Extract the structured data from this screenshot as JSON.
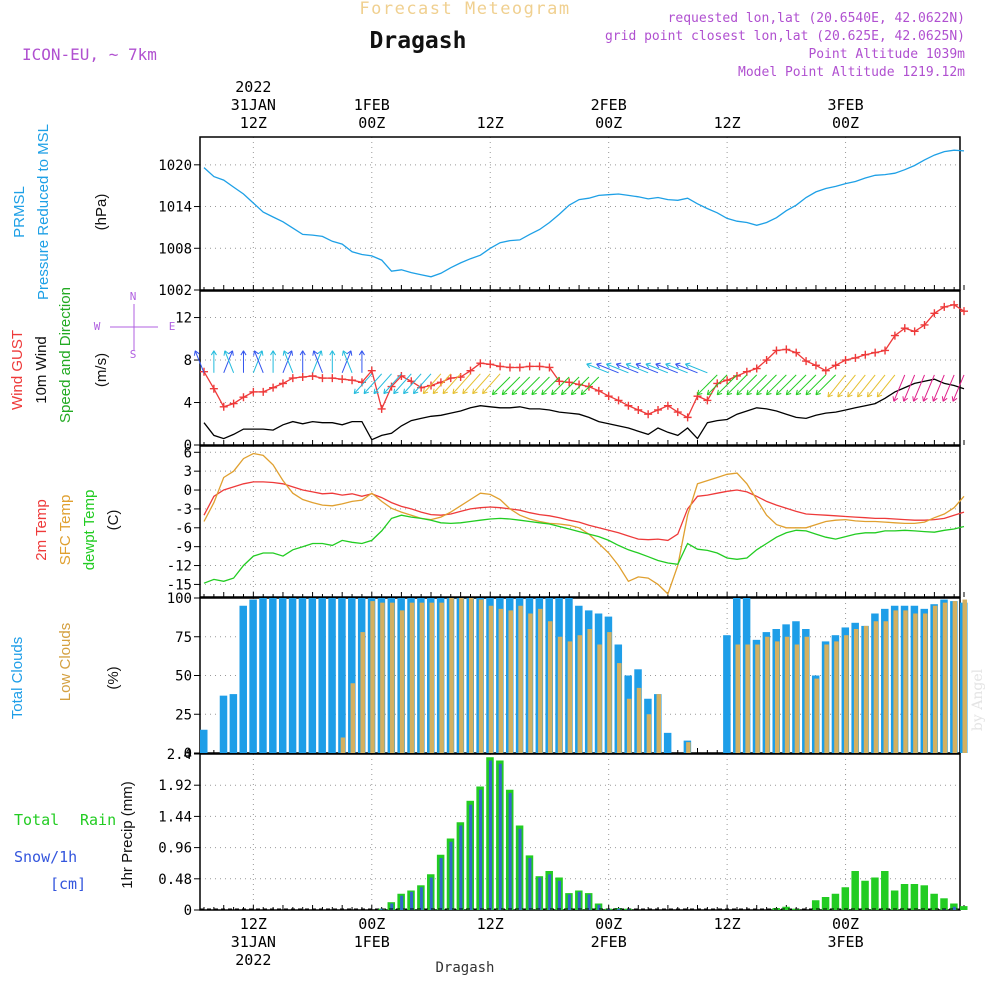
{
  "header": {
    "super_title": "Forecast Meteogram",
    "location": "Dragash",
    "model": "ICON-EU, ~ 7km",
    "requested": "requested lon,lat (20.6540E, 42.0622N)",
    "grid_point": "grid point closest lon,lat (20.625E, 42.0625N)",
    "point_alt": "Point Altitude 1039m",
    "model_alt": "Model Point Altitude 1219.12m",
    "watermark": "by Angel",
    "footer_location": "Dragash"
  },
  "time_axis": {
    "start_hour": 0,
    "end_hour": 77,
    "ticks": [
      {
        "h": 5,
        "l1": "12Z",
        "l2": "31JAN",
        "l3": "2022"
      },
      {
        "h": 17,
        "l1": "00Z",
        "l2": "1FEB",
        "l3": ""
      },
      {
        "h": 29,
        "l1": "12Z",
        "l2": "",
        "l3": ""
      },
      {
        "h": 41,
        "l1": "00Z",
        "l2": "2FEB",
        "l3": ""
      },
      {
        "h": 53,
        "l1": "12Z",
        "l2": "",
        "l3": ""
      },
      {
        "h": 65,
        "l1": "00Z",
        "l2": "3FEB",
        "l3": ""
      }
    ]
  },
  "panels": {
    "pressure": {
      "label1": "PRMSL",
      "label2": "Pressure Reduced to MSL",
      "unit": "(hPa)",
      "yticks": [
        "1002",
        "1008",
        "1014",
        "1020"
      ],
      "ylim": [
        1002,
        1024
      ],
      "line_color": "#1ea0e6"
    },
    "wind": {
      "label_gust": "Wind GUST",
      "label_wind": "10m Wind",
      "label_dir": "Speed and Direction",
      "unit": "(m/s)",
      "compass_n": "N",
      "compass_s": "S",
      "compass_w": "W",
      "compass_e": "E",
      "yticks": [
        "0",
        "4",
        "8",
        "12"
      ],
      "ylim": [
        0,
        14.5
      ]
    },
    "temp": {
      "label_2m": "2m Temp",
      "label_sfc": "SFC Temp",
      "label_dewpt": "dewpt Temp",
      "unit": "(C)",
      "yticks": [
        "-15",
        "-12",
        "-9",
        "-6",
        "-3",
        "0",
        "3",
        "6"
      ],
      "ylim": [
        -17,
        7
      ]
    },
    "clouds": {
      "label_total": "Total Clouds",
      "label_low": "Low Clouds",
      "unit": "(%)",
      "yticks": [
        "0",
        "25",
        "50",
        "75",
        "100"
      ],
      "ylim": [
        0,
        100
      ]
    },
    "precip": {
      "label_total": "Total",
      "label_rain": "Rain",
      "label_snow": "Snow/1h",
      "label_cm": "[cm]",
      "unit": "1hr Precip (mm)",
      "yticks": [
        "0",
        "0.48",
        "0.96",
        "1.44",
        "1.92",
        "2.4"
      ],
      "ylim": [
        0,
        2.4
      ]
    }
  },
  "colors": {
    "pressure": "#1ea0e6",
    "gust": "#ee3a3a",
    "wind": "#000000",
    "t2m": "#ee3a3a",
    "tsfc": "#e0a030",
    "dewpt": "#22cc22",
    "total_clouds": "#1e9ee8",
    "low_clouds": "#d4b060",
    "rain": "#22cc22",
    "snow": "#3366cc",
    "compass": "#b060e0"
  },
  "chart_data": {
    "type": "meteogram",
    "hours_from_start": "0..77",
    "pressure_hPa": [
      1019.6,
      1018.3,
      1017.8,
      1016.8,
      1015.8,
      1014.5,
      1013.2,
      1012.5,
      1011.8,
      1010.9,
      1010.0,
      1009.9,
      1009.7,
      1009.0,
      1008.6,
      1007.5,
      1007.1,
      1006.9,
      1006.3,
      1004.7,
      1004.9,
      1004.5,
      1004.2,
      1003.9,
      1004.4,
      1005.2,
      1005.9,
      1006.5,
      1007.0,
      1008.0,
      1008.8,
      1009.1,
      1009.2,
      1010.0,
      1010.7,
      1011.7,
      1012.9,
      1014.2,
      1015.0,
      1015.2,
      1015.6,
      1015.7,
      1015.8,
      1015.6,
      1015.4,
      1015.1,
      1015.3,
      1015.0,
      1014.9,
      1015.2,
      1014.4,
      1013.7,
      1013.1,
      1012.3,
      1011.9,
      1011.7,
      1011.3,
      1011.7,
      1012.4,
      1013.4,
      1014.2,
      1015.3,
      1016.1,
      1016.6,
      1016.9,
      1017.3,
      1017.6,
      1018.1,
      1018.5,
      1018.6,
      1018.8,
      1019.3,
      1019.9,
      1020.7,
      1021.4,
      1021.9,
      1022.1,
      1022.0
    ],
    "gust_ms": [
      6.9,
      5.3,
      3.6,
      3.9,
      4.5,
      5.0,
      5.0,
      5.4,
      5.8,
      6.3,
      6.4,
      6.5,
      6.3,
      6.3,
      6.2,
      6.1,
      5.9,
      7.0,
      3.4,
      5.5,
      6.5,
      6.0,
      5.4,
      5.6,
      5.9,
      6.3,
      6.4,
      7.0,
      7.7,
      7.6,
      7.4,
      7.3,
      7.3,
      7.4,
      7.4,
      7.3,
      6.0,
      5.9,
      5.7,
      5.5,
      5.1,
      4.6,
      4.2,
      3.7,
      3.3,
      2.9,
      3.3,
      3.7,
      3.1,
      2.6,
      4.6,
      4.2,
      5.8,
      6.1,
      6.5,
      6.9,
      7.2,
      8.0,
      8.9,
      9.0,
      8.7,
      7.9,
      7.5,
      7.0,
      7.5,
      8.0,
      8.2,
      8.5,
      8.7,
      8.9,
      10.3,
      11.0,
      10.7,
      11.3,
      12.4,
      13.0,
      13.2,
      12.6
    ],
    "wind_ms": [
      2.1,
      0.9,
      0.6,
      1.0,
      1.5,
      1.5,
      1.5,
      1.4,
      1.9,
      2.2,
      2.0,
      2.2,
      2.1,
      2.1,
      1.9,
      2.2,
      2.2,
      0.5,
      0.9,
      1.1,
      1.8,
      2.3,
      2.5,
      2.7,
      2.8,
      3.0,
      3.2,
      3.5,
      3.7,
      3.6,
      3.5,
      3.5,
      3.6,
      3.4,
      3.4,
      3.3,
      3.1,
      3.0,
      2.9,
      2.6,
      2.2,
      2.0,
      1.8,
      1.6,
      1.3,
      1.0,
      1.6,
      1.2,
      0.9,
      1.6,
      0.6,
      2.1,
      2.3,
      2.4,
      2.9,
      3.2,
      3.5,
      3.4,
      3.2,
      2.9,
      2.6,
      2.5,
      2.8,
      3.0,
      3.1,
      3.3,
      3.5,
      3.7,
      3.9,
      4.4,
      5.0,
      5.4,
      5.8,
      6.0,
      6.2,
      5.8,
      5.6,
      5.3
    ],
    "t2m_C": [
      -4.0,
      -1.0,
      0.0,
      0.5,
      1.0,
      1.3,
      1.3,
      1.2,
      1.0,
      0.5,
      0.0,
      -0.3,
      -0.6,
      -0.5,
      -0.8,
      -0.6,
      -1.0,
      -0.6,
      -1.2,
      -2.0,
      -2.6,
      -3.0,
      -3.5,
      -3.9,
      -4.0,
      -3.8,
      -3.4,
      -3.0,
      -2.8,
      -2.7,
      -2.8,
      -3.0,
      -3.2,
      -3.6,
      -3.9,
      -4.1,
      -4.4,
      -4.8,
      -5.1,
      -5.6,
      -6.0,
      -6.4,
      -6.8,
      -7.3,
      -7.8,
      -7.9,
      -7.8,
      -8.0,
      -7.0,
      -3.0,
      -1.0,
      -0.8,
      -0.5,
      -0.2,
      0.0,
      -0.3,
      -1.0,
      -1.8,
      -2.4,
      -2.9,
      -3.4,
      -3.8,
      -3.9,
      -4.0,
      -4.1,
      -4.2,
      -4.3,
      -4.4,
      -4.5,
      -4.5,
      -4.6,
      -4.7,
      -4.8,
      -4.8,
      -4.7,
      -4.5,
      -4.0,
      -3.5
    ],
    "tsfc_C": [
      -5.0,
      -2.0,
      2.0,
      3.0,
      5.0,
      5.8,
      5.5,
      4.0,
      1.5,
      -0.5,
      -1.5,
      -2.0,
      -2.4,
      -2.5,
      -2.2,
      -1.8,
      -1.6,
      -0.5,
      -1.8,
      -2.9,
      -3.5,
      -4.0,
      -4.5,
      -4.7,
      -4.3,
      -3.5,
      -2.5,
      -1.5,
      -0.5,
      -0.7,
      -1.5,
      -3.0,
      -4.0,
      -4.6,
      -5.0,
      -5.3,
      -5.4,
      -5.6,
      -6.0,
      -7.0,
      -8.5,
      -10.0,
      -12.0,
      -14.5,
      -13.8,
      -14.0,
      -15.0,
      -16.5,
      -12.0,
      -4.0,
      1.0,
      1.5,
      2.0,
      2.5,
      2.7,
      1.0,
      -1.5,
      -4.0,
      -5.5,
      -6.0,
      -6.0,
      -6.0,
      -5.5,
      -5.0,
      -4.8,
      -4.7,
      -4.9,
      -5.0,
      -5.0,
      -5.1,
      -5.2,
      -5.3,
      -5.3,
      -5.1,
      -4.4,
      -3.8,
      -2.8,
      -1.0
    ],
    "dewpt_C": [
      -14.8,
      -14.2,
      -14.5,
      -14.0,
      -12.0,
      -10.5,
      -10.0,
      -10.0,
      -10.5,
      -9.5,
      -9.0,
      -8.5,
      -8.5,
      -8.8,
      -8.0,
      -8.3,
      -8.5,
      -8.0,
      -6.5,
      -4.5,
      -4.0,
      -4.3,
      -4.5,
      -4.8,
      -5.2,
      -5.3,
      -5.2,
      -5.0,
      -4.8,
      -4.6,
      -4.5,
      -4.6,
      -4.8,
      -5.0,
      -5.2,
      -5.4,
      -5.8,
      -6.2,
      -6.6,
      -7.0,
      -7.4,
      -8.0,
      -8.8,
      -9.5,
      -10.0,
      -10.6,
      -11.2,
      -11.6,
      -11.8,
      -8.5,
      -9.4,
      -9.6,
      -10.0,
      -10.8,
      -11.0,
      -10.8,
      -9.5,
      -8.5,
      -7.5,
      -6.8,
      -6.4,
      -6.5,
      -7.0,
      -7.5,
      -7.8,
      -7.4,
      -7.0,
      -6.8,
      -6.8,
      -6.5,
      -6.5,
      -6.4,
      -6.5,
      -6.6,
      -6.7,
      -6.4,
      -6.2,
      -5.8
    ],
    "total_clouds_pct": [
      15,
      0,
      37,
      38,
      95,
      99,
      100,
      100,
      100,
      100,
      100,
      100,
      100,
      100,
      100,
      100,
      100,
      100,
      100,
      100,
      100,
      100,
      100,
      100,
      100,
      100,
      100,
      100,
      100,
      100,
      100,
      100,
      100,
      100,
      100,
      100,
      100,
      100,
      95,
      92,
      90,
      88,
      70,
      50,
      54,
      35,
      38,
      13,
      0,
      8,
      0,
      0,
      0,
      76,
      100,
      100,
      73,
      78,
      80,
      83,
      85,
      80,
      50,
      72,
      76,
      81,
      84,
      82,
      90,
      93,
      95,
      95,
      95,
      93,
      96,
      99,
      98,
      97
    ],
    "low_clouds_pct": [
      0,
      0,
      0,
      0,
      0,
      0,
      0,
      0,
      0,
      0,
      0,
      0,
      0,
      0,
      10,
      45,
      78,
      98,
      97,
      97,
      92,
      97,
      97,
      97,
      97,
      100,
      100,
      100,
      99,
      95,
      93,
      92,
      95,
      90,
      93,
      85,
      75,
      72,
      76,
      80,
      70,
      78,
      58,
      35,
      42,
      25,
      38,
      0,
      0,
      7,
      0,
      0,
      0,
      0,
      70,
      70,
      70,
      75,
      72,
      75,
      70,
      75,
      48,
      70,
      72,
      76,
      80,
      82,
      85,
      85,
      92,
      92,
      90,
      90,
      95,
      97,
      98,
      99
    ],
    "rain_mm": [
      0,
      0,
      0,
      0,
      0,
      0,
      0,
      0,
      0,
      0,
      0,
      0,
      0,
      0,
      0,
      0,
      0,
      0,
      0.02,
      0.12,
      0.25,
      0.3,
      0.38,
      0.55,
      0.85,
      1.1,
      1.35,
      1.68,
      1.9,
      2.35,
      2.3,
      1.85,
      1.3,
      0.84,
      0.52,
      0.6,
      0.5,
      0.26,
      0.3,
      0.26,
      0.1,
      0.02,
      0.03,
      0.02,
      0,
      0,
      0,
      0,
      0,
      0,
      0,
      0,
      0,
      0,
      0,
      0,
      0,
      0,
      0.03,
      0.05,
      0.02,
      0,
      0.15,
      0.2,
      0.25,
      0.35,
      0.6,
      0.45,
      0.5,
      0.6,
      0.3,
      0.4,
      0.4,
      0.38,
      0.25,
      0.18,
      0.1,
      0.06
    ],
    "snow_cm": [
      0,
      0,
      0,
      0,
      0,
      0,
      0,
      0,
      0,
      0,
      0,
      0,
      0,
      0,
      0,
      0,
      0,
      0,
      0.02,
      0.1,
      0.22,
      0.28,
      0.35,
      0.5,
      0.8,
      1.05,
      1.3,
      1.62,
      1.85,
      2.3,
      2.25,
      1.8,
      1.25,
      0.8,
      0.5,
      0.55,
      0.45,
      0.24,
      0.28,
      0.24,
      0.08,
      0.01,
      0.02,
      0.01,
      0,
      0,
      0,
      0,
      0,
      0,
      0,
      0,
      0,
      0,
      0,
      0,
      0,
      0,
      0,
      0,
      0,
      0,
      0,
      0,
      0,
      0,
      0,
      0,
      0,
      0,
      0,
      0,
      0,
      0,
      0,
      0.02,
      0.05,
      0
    ]
  }
}
